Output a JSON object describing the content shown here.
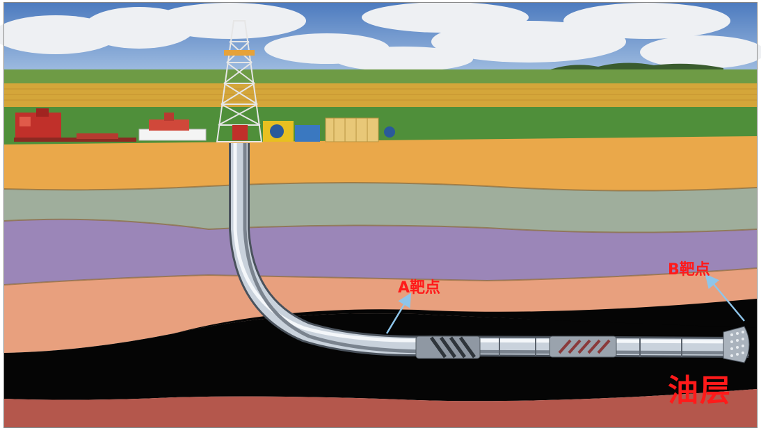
{
  "labels": {
    "target_a": "A靶点",
    "target_b": "B靶点",
    "oil_layer": "油层"
  },
  "colors": {
    "sky": "#5d86c2",
    "cloud": "#f1f2f4",
    "field_yellow": "#d4a63a",
    "grass": "#4f8f3a",
    "layer_orange": "#eaa84a",
    "layer_sage": "#9fae9c",
    "layer_purple": "#9b86b8",
    "layer_salmon": "#e8a07e",
    "oil_black": "#050505",
    "layer_red_brown": "#b4574c",
    "label_red": "#ff1a1a",
    "pipe": "#c9d2dc",
    "arrow_blue": "#8ec5ea"
  },
  "icons": [
    "drilling-rig-icon",
    "pump-truck-icon",
    "equipment-trailer-icon",
    "generator-icon",
    "storage-tank-icon"
  ]
}
